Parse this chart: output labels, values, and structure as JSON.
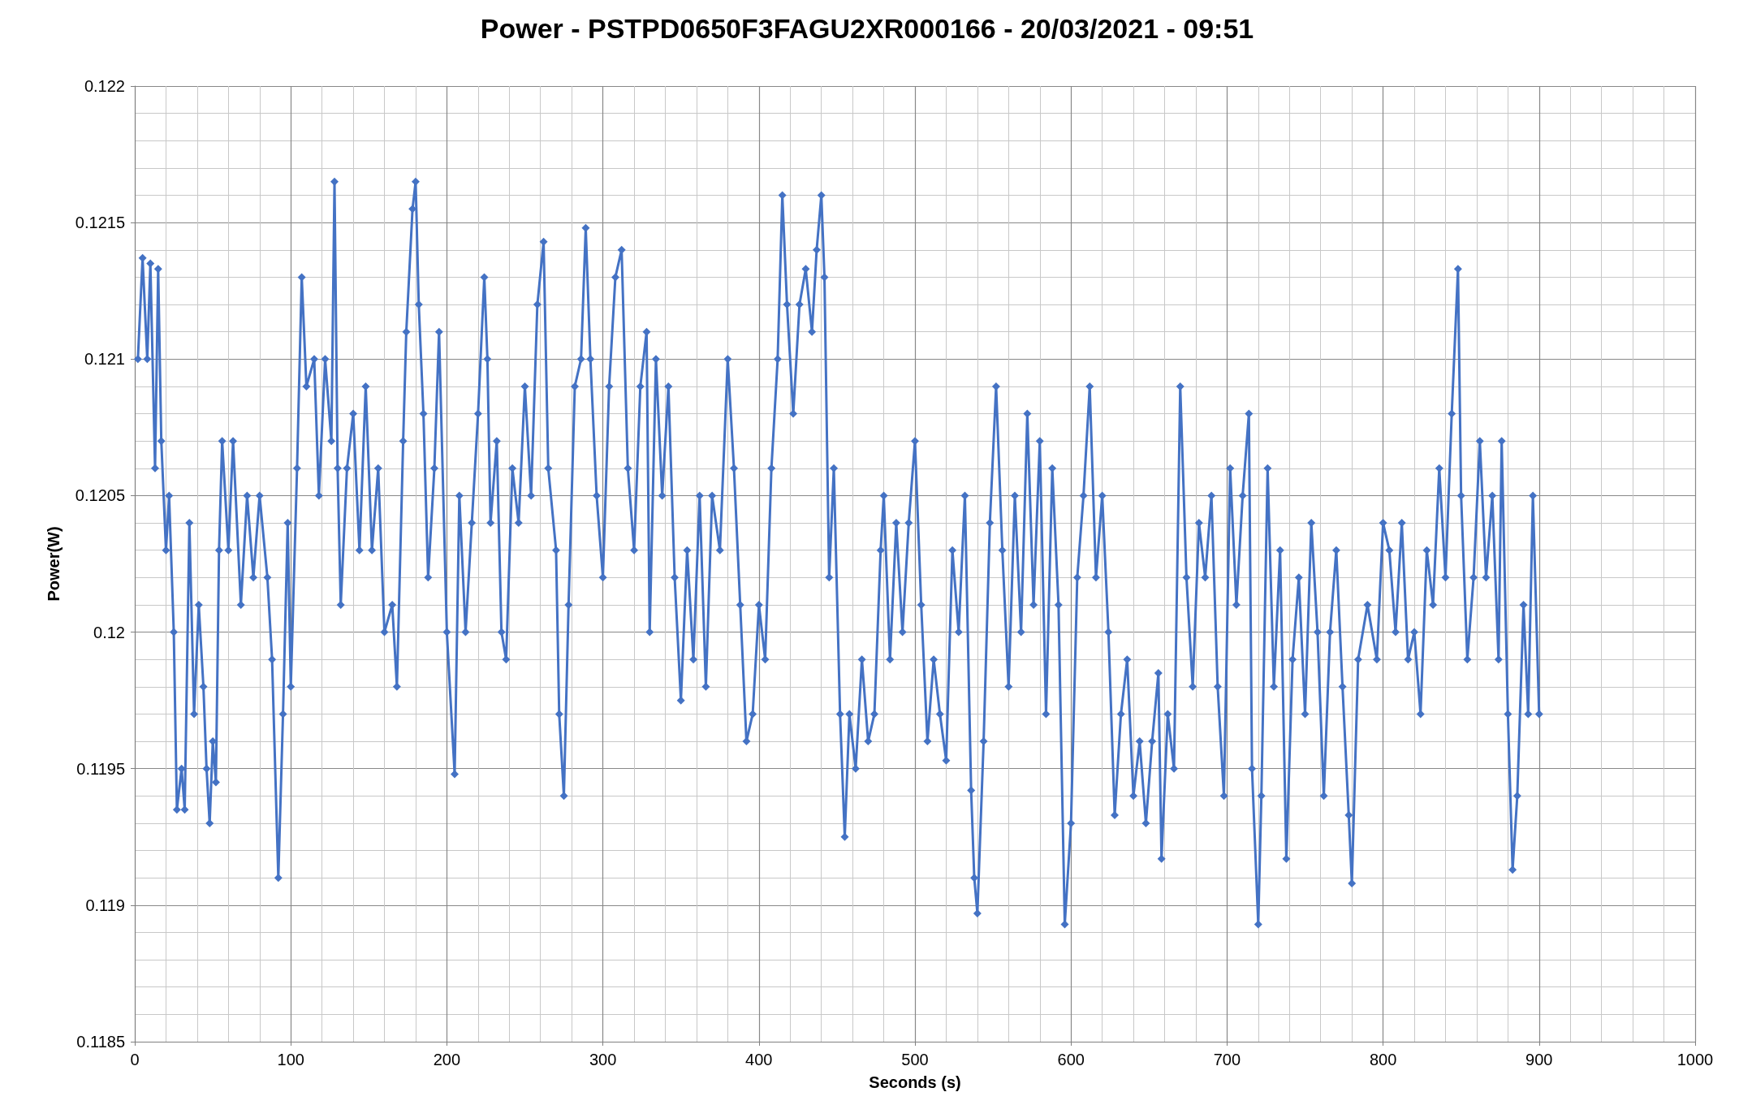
{
  "chart_data": {
    "type": "line",
    "title": "Power - PSTPD0650F3FAGU2XR000166 - 20/03/2021 - 09:51",
    "xlabel": "Seconds (s)",
    "ylabel": "Power(W)",
    "marker": "diamond",
    "line_style": "solid",
    "grid": true,
    "xlim": [
      0,
      1000
    ],
    "xticks": [
      0,
      100,
      200,
      300,
      400,
      500,
      600,
      700,
      800,
      900,
      1000
    ],
    "ylim": [
      0.1185,
      0.122
    ],
    "yticks": [
      0.1185,
      0.119,
      0.1195,
      0.12,
      0.1205,
      0.121,
      0.1215,
      0.122
    ],
    "series": [
      {
        "color": "#4472c4",
        "x": [
          2,
          5,
          8,
          10,
          13,
          15,
          17,
          20,
          22,
          25,
          27,
          30,
          32,
          35,
          38,
          41,
          44,
          46,
          48,
          50,
          52,
          54,
          56,
          60,
          63,
          68,
          72,
          76,
          80,
          85,
          88,
          92,
          95,
          98,
          100,
          104,
          107,
          110,
          115,
          118,
          122,
          126,
          128,
          130,
          132,
          136,
          140,
          144,
          148,
          152,
          156,
          160,
          165,
          168,
          172,
          174,
          178,
          180,
          182,
          185,
          188,
          192,
          195,
          200,
          205,
          208,
          212,
          216,
          220,
          224,
          226,
          228,
          232,
          235,
          238,
          242,
          246,
          250,
          254,
          258,
          262,
          265,
          270,
          272,
          275,
          278,
          282,
          286,
          289,
          292,
          296,
          300,
          304,
          308,
          312,
          316,
          320,
          324,
          328,
          330,
          334,
          338,
          342,
          346,
          350,
          354,
          358,
          362,
          366,
          370,
          375,
          380,
          384,
          388,
          392,
          396,
          400,
          404,
          408,
          412,
          415,
          418,
          422,
          426,
          430,
          434,
          437,
          440,
          442,
          445,
          448,
          452,
          455,
          458,
          462,
          466,
          470,
          474,
          478,
          480,
          484,
          488,
          492,
          496,
          500,
          504,
          508,
          512,
          516,
          520,
          524,
          528,
          532,
          536,
          538,
          540,
          544,
          548,
          552,
          556,
          560,
          564,
          568,
          572,
          576,
          580,
          584,
          588,
          592,
          596,
          600,
          604,
          608,
          612,
          616,
          620,
          624,
          628,
          632,
          636,
          640,
          644,
          648,
          652,
          656,
          658,
          662,
          666,
          670,
          674,
          678,
          682,
          686,
          690,
          694,
          698,
          702,
          706,
          710,
          714,
          716,
          720,
          722,
          726,
          730,
          734,
          738,
          742,
          746,
          750,
          754,
          758,
          762,
          766,
          770,
          774,
          778,
          780,
          784,
          790,
          796,
          800,
          804,
          808,
          812,
          816,
          820,
          824,
          828,
          832,
          836,
          840,
          844,
          848,
          850,
          854,
          858,
          862,
          866,
          870,
          874,
          876,
          880,
          883,
          886,
          890,
          893,
          896,
          900
        ],
        "values": [
          0.121,
          0.12137,
          0.121,
          0.12135,
          0.1206,
          0.12133,
          0.1207,
          0.1203,
          0.1205,
          0.12,
          0.11935,
          0.1195,
          0.11935,
          0.1204,
          0.1197,
          0.1201,
          0.1198,
          0.1195,
          0.1193,
          0.1196,
          0.11945,
          0.1203,
          0.1207,
          0.1203,
          0.1207,
          0.1201,
          0.1205,
          0.1202,
          0.1205,
          0.1202,
          0.1199,
          0.1191,
          0.1197,
          0.1204,
          0.1198,
          0.1206,
          0.1213,
          0.1209,
          0.121,
          0.1205,
          0.121,
          0.1207,
          0.12165,
          0.1206,
          0.1201,
          0.1206,
          0.1208,
          0.1203,
          0.1209,
          0.1203,
          0.1206,
          0.12,
          0.1201,
          0.1198,
          0.1207,
          0.1211,
          0.12155,
          0.12165,
          0.1212,
          0.1208,
          0.1202,
          0.1206,
          0.1211,
          0.12,
          0.11948,
          0.1205,
          0.12,
          0.1204,
          0.1208,
          0.1213,
          0.121,
          0.1204,
          0.1207,
          0.12,
          0.1199,
          0.1206,
          0.1204,
          0.1209,
          0.1205,
          0.1212,
          0.12143,
          0.1206,
          0.1203,
          0.1197,
          0.1194,
          0.1201,
          0.1209,
          0.121,
          0.12148,
          0.121,
          0.1205,
          0.1202,
          0.1209,
          0.1213,
          0.1214,
          0.1206,
          0.1203,
          0.1209,
          0.1211,
          0.12,
          0.121,
          0.1205,
          0.1209,
          0.1202,
          0.11975,
          0.1203,
          0.1199,
          0.1205,
          0.1198,
          0.1205,
          0.1203,
          0.121,
          0.1206,
          0.1201,
          0.1196,
          0.1197,
          0.1201,
          0.1199,
          0.1206,
          0.121,
          0.1216,
          0.1212,
          0.1208,
          0.1212,
          0.12133,
          0.1211,
          0.1214,
          0.1216,
          0.1213,
          0.1202,
          0.1206,
          0.1197,
          0.11925,
          0.1197,
          0.1195,
          0.1199,
          0.1196,
          0.1197,
          0.1203,
          0.1205,
          0.1199,
          0.1204,
          0.12,
          0.1204,
          0.1207,
          0.1201,
          0.1196,
          0.1199,
          0.1197,
          0.11953,
          0.1203,
          0.12,
          0.1205,
          0.11942,
          0.1191,
          0.11897,
          0.1196,
          0.1204,
          0.1209,
          0.1203,
          0.1198,
          0.1205,
          0.12,
          0.1208,
          0.1201,
          0.1207,
          0.1197,
          0.1206,
          0.1201,
          0.11893,
          0.1193,
          0.1202,
          0.1205,
          0.1209,
          0.1202,
          0.1205,
          0.12,
          0.11933,
          0.1197,
          0.1199,
          0.1194,
          0.1196,
          0.1193,
          0.1196,
          0.11985,
          0.11917,
          0.1197,
          0.1195,
          0.1209,
          0.1202,
          0.1198,
          0.1204,
          0.1202,
          0.1205,
          0.1198,
          0.1194,
          0.1206,
          0.1201,
          0.1205,
          0.1208,
          0.1195,
          0.11893,
          0.1194,
          0.1206,
          0.1198,
          0.1203,
          0.11917,
          0.1199,
          0.1202,
          0.1197,
          0.1204,
          0.12,
          0.1194,
          0.12,
          0.1203,
          0.1198,
          0.11933,
          0.11908,
          0.1199,
          0.1201,
          0.1199,
          0.1204,
          0.1203,
          0.12,
          0.1204,
          0.1199,
          0.12,
          0.1197,
          0.1203,
          0.1201,
          0.1206,
          0.1202,
          0.1208,
          0.12133,
          0.1205,
          0.1199,
          0.1202,
          0.1207,
          0.1202,
          0.1205,
          0.1199,
          0.1207,
          0.1197,
          0.11913,
          0.1194,
          0.1201,
          0.1197,
          0.1205,
          0.1197
        ]
      }
    ]
  }
}
